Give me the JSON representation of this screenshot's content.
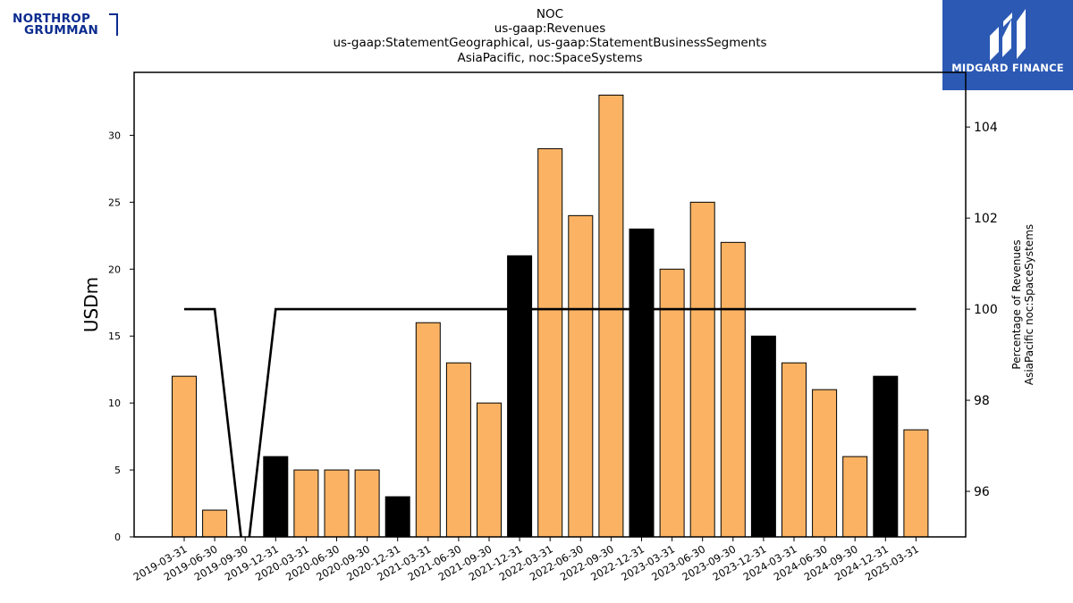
{
  "logos": {
    "left": {
      "line1": "NORTHROP",
      "line2": "GRUMMAN"
    },
    "right": {
      "text": "MIDGARD FINANCE"
    }
  },
  "chart_data": {
    "type": "bar",
    "title_lines": [
      "NOC",
      "us-gaap:Revenues",
      "us-gaap:StatementGeographical, us-gaap:StatementBusinessSegments",
      "AsiaPacific, noc:SpaceSystems"
    ],
    "ylabel": "USDm",
    "y2label_lines": [
      "Percentage of Revenues",
      "AsiaPacific noc:SpaceSystems"
    ],
    "categories": [
      "2019-03-31",
      "2019-06-30",
      "2019-09-30",
      "2019-12-31",
      "2020-03-31",
      "2020-06-30",
      "2020-09-30",
      "2020-12-31",
      "2021-03-31",
      "2021-06-30",
      "2021-09-30",
      "2021-12-31",
      "2022-03-31",
      "2022-06-30",
      "2022-09-30",
      "2022-12-31",
      "2023-03-31",
      "2023-06-30",
      "2023-09-30",
      "2023-12-31",
      "2024-03-31",
      "2024-06-30",
      "2024-09-30",
      "2024-12-31",
      "2025-03-31"
    ],
    "values": [
      12,
      2,
      0,
      6,
      5,
      5,
      5,
      3,
      16,
      13,
      10,
      21,
      29,
      24,
      33,
      23,
      20,
      25,
      22,
      15,
      13,
      11,
      6,
      12,
      8
    ],
    "bar_colors": [
      "#fbb363",
      "#fbb363",
      "#fbb363",
      "#000000",
      "#fbb363",
      "#fbb363",
      "#fbb363",
      "#000000",
      "#fbb363",
      "#fbb363",
      "#fbb363",
      "#000000",
      "#fbb363",
      "#fbb363",
      "#fbb363",
      "#000000",
      "#fbb363",
      "#fbb363",
      "#fbb363",
      "#000000",
      "#fbb363",
      "#fbb363",
      "#fbb363",
      "#000000",
      "#fbb363"
    ],
    "ylim": [
      0,
      34.7
    ],
    "yticks": [
      0,
      5,
      10,
      15,
      20,
      25,
      30
    ],
    "line_series": {
      "values": [
        100,
        100,
        0,
        100,
        100,
        100,
        100,
        100,
        100,
        100,
        100,
        100,
        100,
        100,
        100,
        100,
        100,
        100,
        100,
        100,
        100,
        100,
        100,
        100,
        100
      ],
      "color": "#000000"
    },
    "y2lim": [
      95,
      105.2
    ],
    "y2ticks": [
      96,
      98,
      100,
      102,
      104
    ],
    "grid": false,
    "colors": {
      "bar": "#fbb363",
      "highlight_bar": "#000000",
      "line": "#000000"
    }
  }
}
